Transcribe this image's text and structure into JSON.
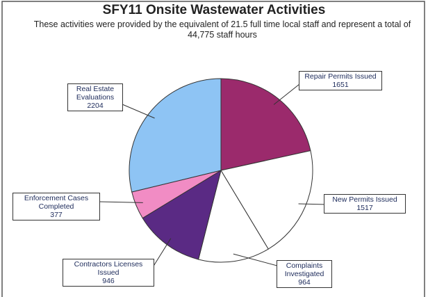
{
  "chart_data": {
    "type": "pie",
    "title": "SFY11 Onsite Wastewater Activities",
    "subtitle": "These activities were provided by the equivalent of 21.5 full time local staff and represent a total of 44,775 staff hours",
    "categories": [
      "Repair Permits Issued",
      "New Permits Issued",
      "Complaints Investigated",
      "Contractors Licenses Issued",
      "Enforcement Cases Completed",
      "Real Estate Evaluations"
    ],
    "values": [
      1651,
      1517,
      964,
      946,
      377,
      2204
    ],
    "colors": [
      "#9b2a6c",
      "#ffffff",
      "#ffffff",
      "#5a2a84",
      "#f18cc4",
      "#8ec4f4"
    ]
  }
}
